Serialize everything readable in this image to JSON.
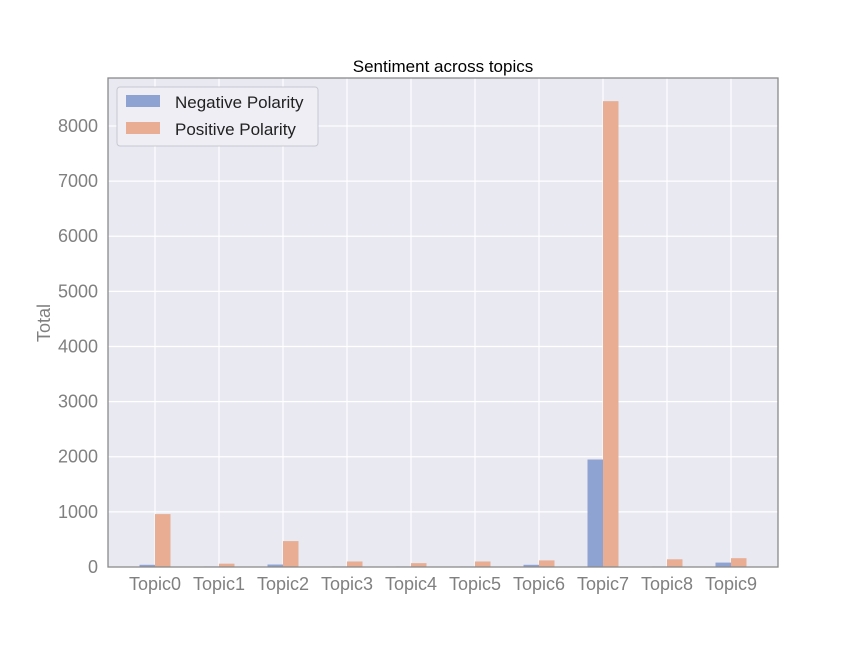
{
  "chart_data": {
    "type": "bar",
    "title": "Sentiment across topics",
    "xlabel": "",
    "ylabel": "Total",
    "categories": [
      "Topic0",
      "Topic1",
      "Topic2",
      "Topic3",
      "Topic4",
      "Topic5",
      "Topic6",
      "Topic7",
      "Topic8",
      "Topic9"
    ],
    "series": [
      {
        "name": "Negative Polarity",
        "color": "#8ea3d2",
        "values": [
          40,
          10,
          45,
          10,
          10,
          10,
          40,
          1950,
          10,
          80
        ]
      },
      {
        "name": "Positive Polarity",
        "color": "#e9ad94",
        "values": [
          960,
          60,
          470,
          100,
          70,
          100,
          120,
          8450,
          140,
          160
        ]
      }
    ],
    "ylim": [
      0,
      8870
    ],
    "yticks": [
      0,
      1000,
      2000,
      3000,
      4000,
      5000,
      6000,
      7000,
      8000
    ],
    "grid": true,
    "legend_position": "top-left",
    "plot_background": "#e9e9f1",
    "grid_color": "#ffffff",
    "tick_color": "#808080"
  }
}
